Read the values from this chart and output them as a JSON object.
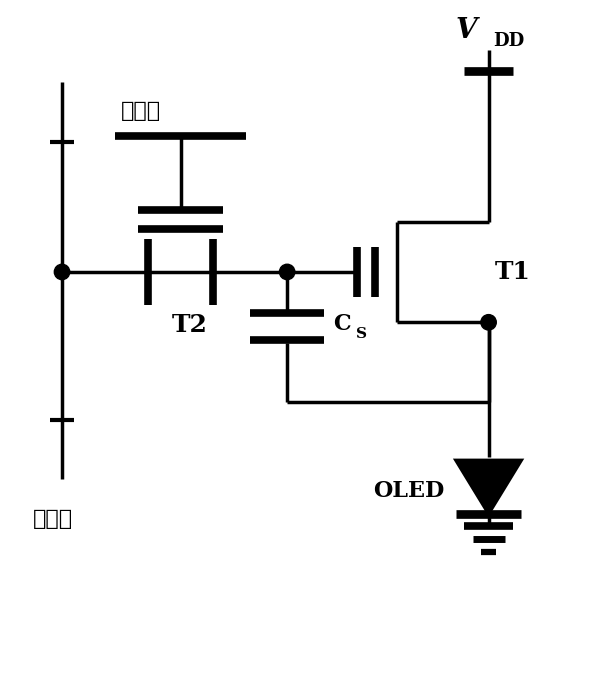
{
  "bg_color": "#ffffff",
  "line_color": "#000000",
  "lw": 2.5,
  "figsize": [
    5.98,
    6.92
  ],
  "dpi": 100,
  "scan_label": "扫描线",
  "data_label": "数据线",
  "T1_label": "T1",
  "T2_label": "T2",
  "Cs_label_C": "C",
  "Cs_label_s": "S",
  "VDD_V": "V",
  "VDD_DD": "DD",
  "OLED_label": "OLED",
  "xlim": [
    0,
    10
  ],
  "ylim": [
    0,
    11.5
  ]
}
